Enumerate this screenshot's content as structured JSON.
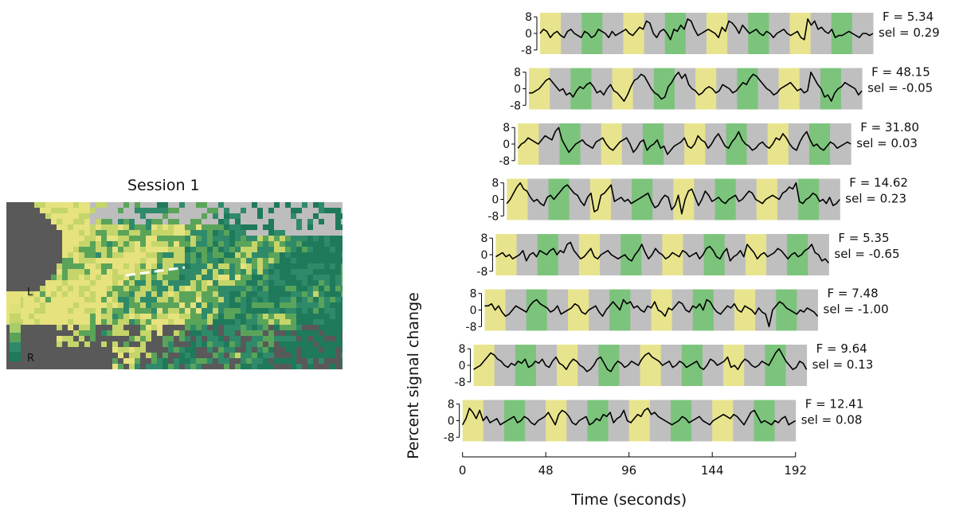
{
  "map": {
    "title": "Session 1",
    "colorbar_top_label": "L",
    "colorbar_bottom_label": "R",
    "colors": {
      "yellow": "#e6e27e",
      "yellow_green": "#c5d56a",
      "green": "#5aa45a",
      "teal": "#2f8a6a",
      "dark_teal": "#1e7a5a",
      "background_gray": "#595959",
      "light_gray": "#bdbdbd"
    }
  },
  "chart_data": {
    "type": "line",
    "xlabel": "Time (seconds)",
    "ylabel": "Percent signal change",
    "x_ticks": [
      0,
      48,
      96,
      144,
      192
    ],
    "x_tick_labels": [
      "0",
      "48",
      "96",
      "144",
      "192"
    ],
    "xlim": [
      0,
      192
    ],
    "y_ticks": [
      8,
      0,
      -8
    ],
    "y_tick_labels": [
      "8",
      "0",
      "-8"
    ],
    "ylim": [
      -10,
      10
    ],
    "block_duration_seconds": 12,
    "block_pattern": [
      "yellow",
      "gray",
      "green",
      "gray"
    ],
    "block_colors": {
      "yellow": "#e8e48e",
      "gray": "#bfbfbf",
      "green": "#7cc47c"
    },
    "series": [
      {
        "name": "F = 5.34",
        "sel_label": "sel = 0.29",
        "values": [
          0,
          2,
          1,
          -2,
          0,
          1,
          -1,
          -2,
          1,
          2,
          0,
          -1,
          -2,
          1,
          0,
          -2,
          -1,
          2,
          1,
          0,
          -2,
          1,
          -1,
          0,
          1,
          2,
          0,
          -1,
          1,
          3,
          2,
          6,
          5,
          0,
          -2,
          1,
          2,
          0,
          -3,
          2,
          1,
          4,
          2,
          7,
          6,
          2,
          -1,
          0,
          1,
          2,
          1,
          0,
          -2,
          3,
          1,
          6,
          5,
          3,
          0,
          4,
          2,
          0,
          1,
          2,
          0,
          -1,
          1,
          0,
          -2,
          0,
          1,
          2,
          0,
          -1,
          0,
          1,
          -2,
          -3,
          7,
          4,
          6,
          2,
          3,
          1,
          0,
          2,
          -2,
          -1,
          -1,
          0,
          1,
          0,
          -1,
          -2,
          0,
          0,
          -1,
          0
        ]
      },
      {
        "name": "F = 48.15",
        "sel_label": "sel = -0.05",
        "values": [
          -2,
          -2,
          -1,
          0,
          2,
          4,
          5,
          3,
          1,
          -1,
          0,
          -3,
          -2,
          -4,
          -1,
          1,
          0,
          2,
          3,
          1,
          -2,
          -1,
          -3,
          0,
          2,
          -1,
          -2,
          -4,
          -6,
          -3,
          1,
          4,
          5,
          7,
          6,
          3,
          0,
          -2,
          -3,
          -5,
          -4,
          1,
          3,
          6,
          8,
          5,
          7,
          2,
          0,
          -1,
          -3,
          -2,
          0,
          1,
          0,
          -2,
          -1,
          2,
          1,
          0,
          -2,
          -1,
          1,
          3,
          2,
          5,
          7,
          6,
          4,
          2,
          0,
          -1,
          -3,
          -2,
          0,
          1,
          2,
          3,
          1,
          -1,
          0,
          -2,
          -1,
          8,
          5,
          2,
          0,
          -4,
          -3,
          -6,
          -2,
          0,
          1,
          3,
          2,
          1,
          0,
          -3,
          -1
        ]
      },
      {
        "name": "F = 31.80",
        "sel_label": "sel = 0.03",
        "values": [
          -2,
          0,
          1,
          3,
          2,
          1,
          0,
          2,
          4,
          3,
          2,
          6,
          8,
          2,
          -1,
          -4,
          -2,
          0,
          1,
          2,
          0,
          -1,
          -2,
          1,
          2,
          3,
          0,
          -2,
          -3,
          -1,
          1,
          2,
          3,
          0,
          -4,
          -2,
          1,
          2,
          -3,
          -1,
          0,
          2,
          -2,
          -1,
          -5,
          -3,
          -1,
          0,
          1,
          3,
          -1,
          -2,
          0,
          4,
          2,
          1,
          -2,
          0,
          3,
          5,
          2,
          -1,
          -2,
          1,
          3,
          6,
          2,
          0,
          -1,
          -3,
          -2,
          0,
          1,
          -1,
          -2,
          0,
          3,
          2,
          5,
          3,
          0,
          -2,
          -3,
          1,
          4,
          6,
          2,
          -1,
          0,
          -2,
          -3,
          -1,
          1,
          0,
          -2,
          -1,
          0,
          1,
          0
        ]
      },
      {
        "name": "F = 14.62",
        "sel_label": "sel = 0.23",
        "values": [
          -2,
          0,
          3,
          6,
          8,
          5,
          4,
          1,
          -1,
          0,
          -2,
          -3,
          1,
          2,
          0,
          2,
          4,
          6,
          7,
          5,
          3,
          2,
          -1,
          -3,
          1,
          3,
          -6,
          -5,
          2,
          3,
          5,
          7,
          -1,
          0,
          1,
          -1,
          0,
          -2,
          -1,
          0,
          1,
          2,
          3,
          -1,
          -4,
          -3,
          0,
          2,
          1,
          -5,
          -3,
          2,
          -7,
          0,
          4,
          5,
          1,
          -3,
          0,
          4,
          2,
          -1,
          0,
          1,
          -1,
          -2,
          0,
          1,
          2,
          -1,
          0,
          2,
          4,
          3,
          0,
          -1,
          -2,
          0,
          1,
          2,
          1,
          0,
          3,
          4,
          6,
          5,
          8,
          -1,
          -2,
          0,
          1,
          3,
          2,
          -1,
          0,
          -2,
          1,
          -3,
          -2,
          0
        ]
      },
      {
        "name": "F = 5.35",
        "sel_label": "sel = -0.65",
        "values": [
          -1,
          0,
          1,
          -1,
          0,
          -2,
          -1,
          0,
          2,
          -3,
          0,
          1,
          -1,
          2,
          1,
          0,
          2,
          3,
          0,
          2,
          1,
          5,
          6,
          2,
          0,
          -2,
          -1,
          1,
          3,
          -1,
          -2,
          0,
          1,
          2,
          0,
          -1,
          -2,
          -1,
          0,
          -2,
          -3,
          0,
          2,
          5,
          1,
          -2,
          0,
          3,
          1,
          0,
          -2,
          -1,
          1,
          0,
          -1,
          2,
          1,
          -1,
          0,
          1,
          -2,
          0,
          3,
          4,
          2,
          -1,
          -2,
          1,
          3,
          -3,
          -1,
          0,
          2,
          -1,
          5,
          3,
          1,
          -2,
          0,
          1,
          -1,
          0,
          1,
          3,
          2,
          0,
          -2,
          0,
          1,
          -1,
          0,
          2,
          3,
          5,
          1,
          0,
          -3,
          -2,
          -4
        ]
      },
      {
        "name": "F = 7.48",
        "sel_label": "sel = -1.00",
        "values": [
          2,
          2,
          3,
          0,
          2,
          -1,
          -3,
          -2,
          0,
          2,
          1,
          0,
          -1,
          2,
          4,
          5,
          3,
          2,
          1,
          -1,
          0,
          2,
          -2,
          -1,
          0,
          1,
          3,
          2,
          -1,
          -2,
          0,
          1,
          2,
          -1,
          -3,
          0,
          2,
          4,
          2,
          0,
          5,
          3,
          4,
          1,
          2,
          0,
          -1,
          2,
          1,
          4,
          0,
          -1,
          -3,
          1,
          0,
          2,
          4,
          3,
          0,
          -1,
          2,
          1,
          3,
          0,
          5,
          4,
          1,
          -1,
          -2,
          0,
          2,
          1,
          3,
          0,
          -1,
          2,
          1,
          0,
          -2,
          1,
          -1,
          -2,
          -8,
          0,
          2,
          4,
          3,
          1,
          0,
          -1,
          -2,
          0,
          -1,
          1,
          0,
          -1,
          -3
        ]
      },
      {
        "name": "F = 9.64",
        "sel_label": "sel = 0.13",
        "values": [
          -2,
          -1,
          0,
          2,
          4,
          6,
          5,
          3,
          2,
          0,
          -1,
          1,
          0,
          2,
          1,
          3,
          -1,
          0,
          2,
          1,
          3,
          0,
          -1,
          2,
          4,
          1,
          0,
          -2,
          1,
          3,
          2,
          0,
          -1,
          -3,
          -2,
          0,
          3,
          4,
          1,
          -2,
          -3,
          0,
          2,
          1,
          -1,
          0,
          2,
          1,
          0,
          3,
          5,
          6,
          4,
          3,
          2,
          0,
          1,
          2,
          -1,
          0,
          2,
          1,
          -1,
          0,
          1,
          2,
          -1,
          -2,
          0,
          3,
          2,
          0,
          1,
          2,
          4,
          -1,
          0,
          -2,
          1,
          3,
          2,
          0,
          -1,
          0,
          2,
          1,
          0,
          3,
          6,
          8,
          5,
          2,
          0,
          -2,
          -1,
          2,
          1,
          -2
        ]
      },
      {
        "name": "F = 12.41",
        "sel_label": "sel = 0.08",
        "values": [
          -2,
          1,
          6,
          4,
          1,
          5,
          0,
          2,
          -1,
          0,
          1,
          -2,
          -1,
          0,
          1,
          2,
          -1,
          0,
          2,
          1,
          -1,
          -2,
          0,
          1,
          2,
          4,
          1,
          -2,
          3,
          5,
          4,
          2,
          -1,
          -2,
          0,
          1,
          2,
          -2,
          -1,
          1,
          0,
          3,
          2,
          4,
          -1,
          1,
          2,
          5,
          0,
          -1,
          1,
          3,
          2,
          5,
          6,
          3,
          4,
          2,
          1,
          0,
          -1,
          -2,
          -1,
          0,
          2,
          1,
          -1,
          0,
          1,
          2,
          0,
          -1,
          -2,
          0,
          1,
          2,
          3,
          2,
          1,
          3,
          2,
          0,
          -2,
          1,
          4,
          5,
          2,
          -1,
          0,
          -1,
          -2,
          0,
          -1,
          1,
          2,
          -2,
          -1,
          0
        ]
      }
    ]
  }
}
